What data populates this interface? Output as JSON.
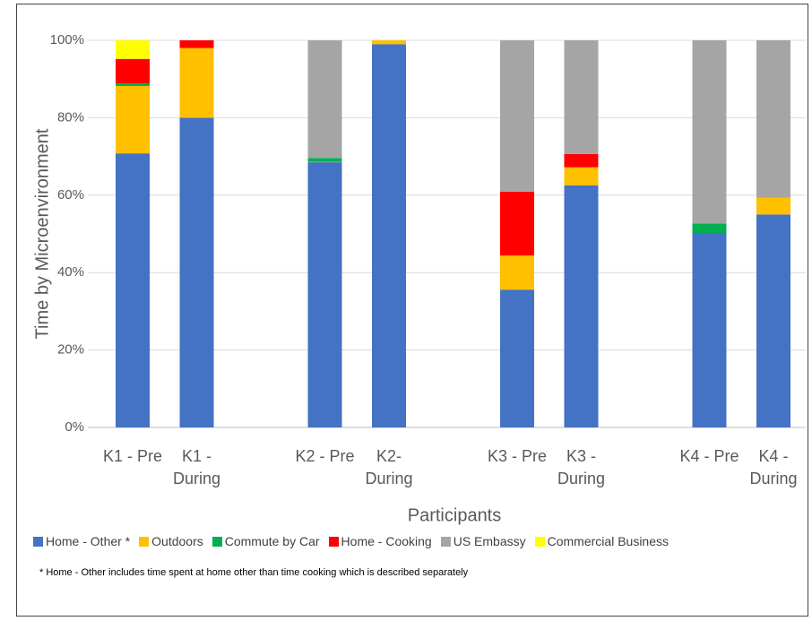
{
  "chart_data": {
    "type": "stacked-bar",
    "categories": [
      "K1 - Pre",
      "K1 - During",
      null,
      "K2 - Pre",
      "K2- During",
      null,
      "K3 - Pre",
      "K3 - During",
      null,
      "K4 - Pre",
      "K4 - During"
    ],
    "series": [
      {
        "name": "Home - Other *",
        "color": "#4472c4",
        "values": [
          70.8,
          80,
          null,
          68.5,
          99,
          null,
          35.6,
          62.5,
          null,
          50,
          55
        ]
      },
      {
        "name": "Outdoors",
        "color": "#ffc000",
        "values": [
          17.4,
          18,
          null,
          0.1,
          1,
          null,
          8.8,
          4.7,
          null,
          0,
          4.3
        ]
      },
      {
        "name": "Commute by Car",
        "color": "#00b050",
        "values": [
          0.7,
          0,
          null,
          1,
          0,
          null,
          0,
          0,
          null,
          2.7,
          0
        ]
      },
      {
        "name": "Home - Cooking",
        "color": "#ff0000",
        "values": [
          6.3,
          2,
          null,
          0,
          0,
          null,
          16.5,
          3.4,
          null,
          0,
          0
        ]
      },
      {
        "name": "US Embassy",
        "color": "#a5a5a5",
        "values": [
          0,
          0,
          null,
          30.4,
          0,
          null,
          39.1,
          29.4,
          null,
          47.3,
          40.7
        ]
      },
      {
        "name": "Commercial Business",
        "color": "#ffff00",
        "values": [
          4.8,
          0,
          null,
          0,
          0,
          null,
          0,
          0,
          null,
          0,
          0
        ]
      }
    ],
    "y_label": "Time by Microenvironment",
    "x_label": "Participants",
    "note": "* Home - Other includes time spent at home other than time cooking which is described separately",
    "ylim": [
      0,
      100
    ],
    "yticks": [
      {
        "value": 0,
        "label": "0%"
      },
      {
        "value": 20,
        "label": "20%"
      },
      {
        "value": 40,
        "label": "40%"
      },
      {
        "value": 60,
        "label": "60%"
      },
      {
        "value": 80,
        "label": "80%"
      },
      {
        "value": 100,
        "label": "100%"
      }
    ],
    "grid": true,
    "legend": "bottom"
  }
}
